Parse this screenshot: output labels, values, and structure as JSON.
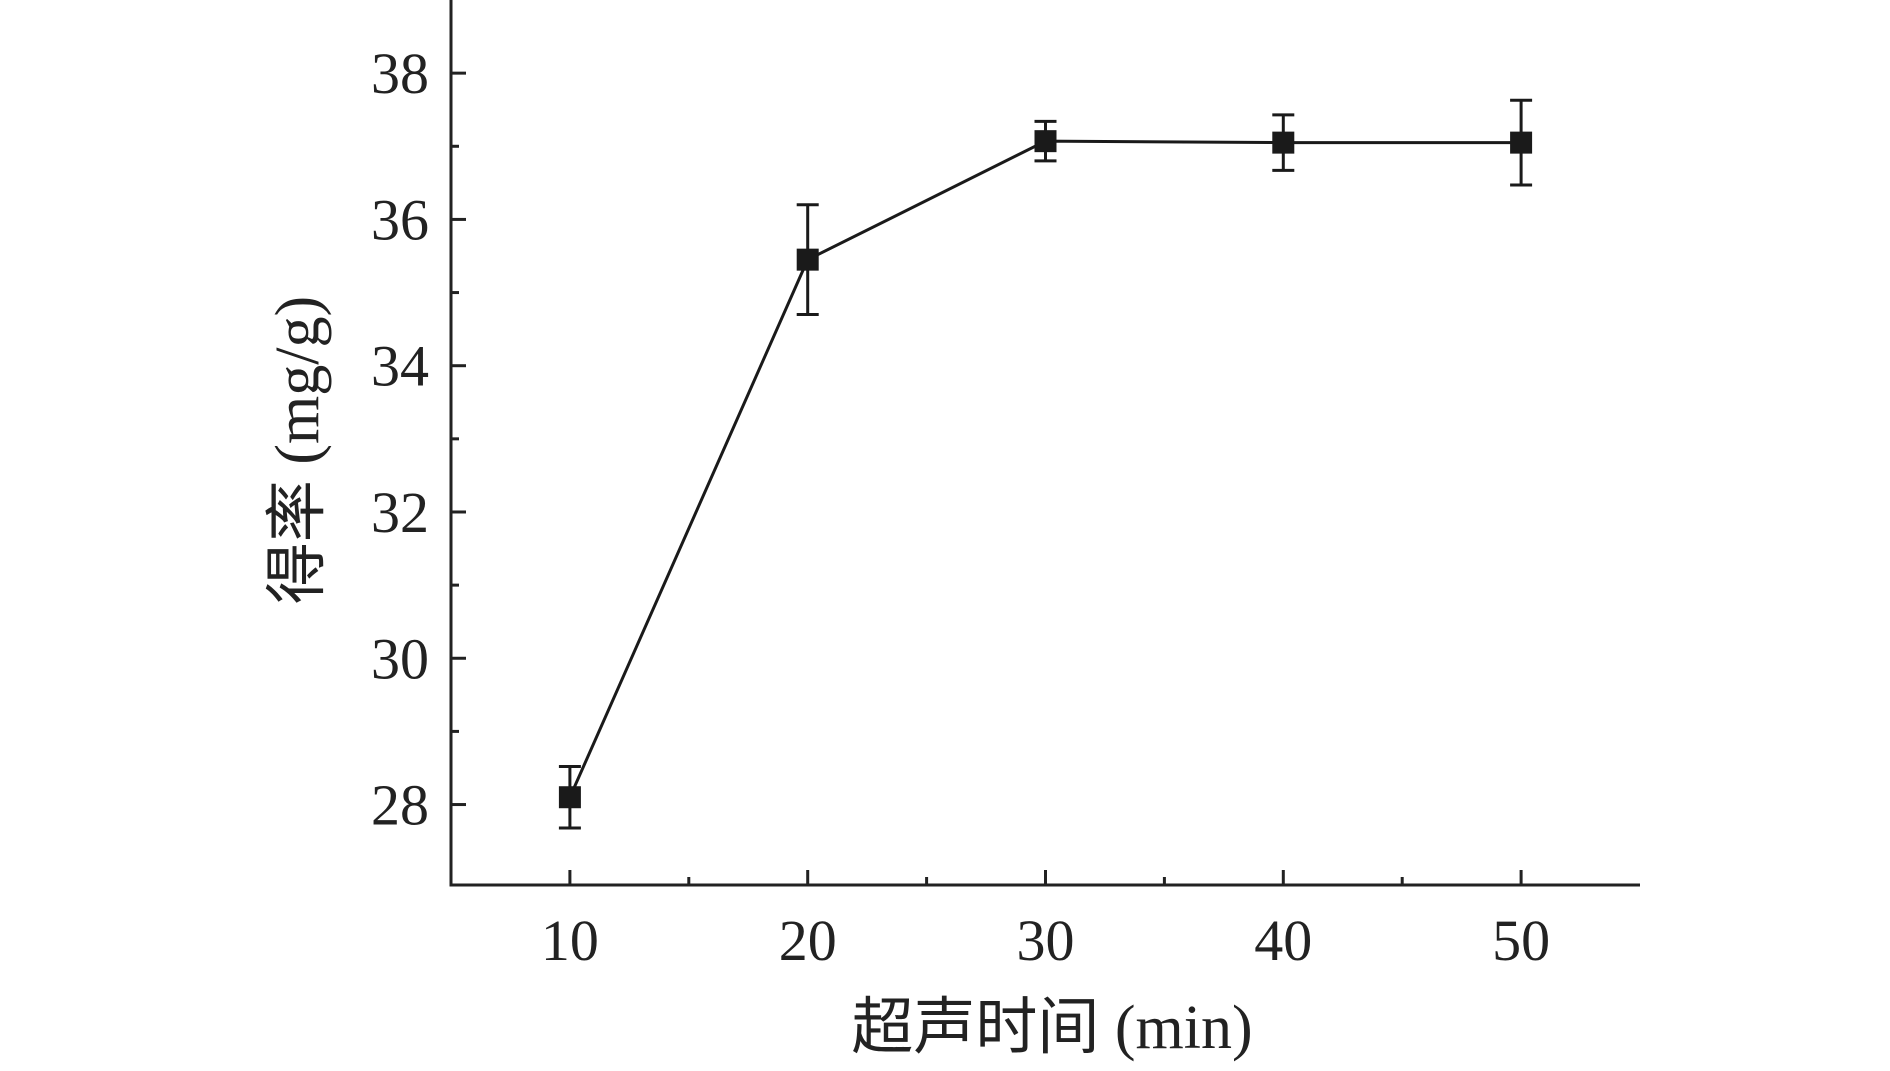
{
  "chart_data": {
    "type": "line",
    "title": "",
    "xlabel": "超声时间 (min)",
    "ylabel": "得率 (mg/g)",
    "xlim": [
      5,
      55
    ],
    "ylim": [
      26.9,
      39
    ],
    "x_ticks": [
      10,
      20,
      30,
      40,
      50
    ],
    "y_ticks": [
      28,
      30,
      32,
      34,
      36,
      38
    ],
    "grid": false,
    "legend": "none",
    "marker": "square",
    "series": [
      {
        "x": [
          10,
          20,
          30,
          40,
          50
        ],
        "y": [
          28.1,
          35.45,
          37.07,
          37.05,
          37.05
        ],
        "error": [
          0.42,
          0.75,
          0.27,
          0.38,
          0.58
        ]
      }
    ]
  },
  "colors": {
    "line": "#1a1a1a",
    "axis": "#222222",
    "text": "#222222"
  }
}
